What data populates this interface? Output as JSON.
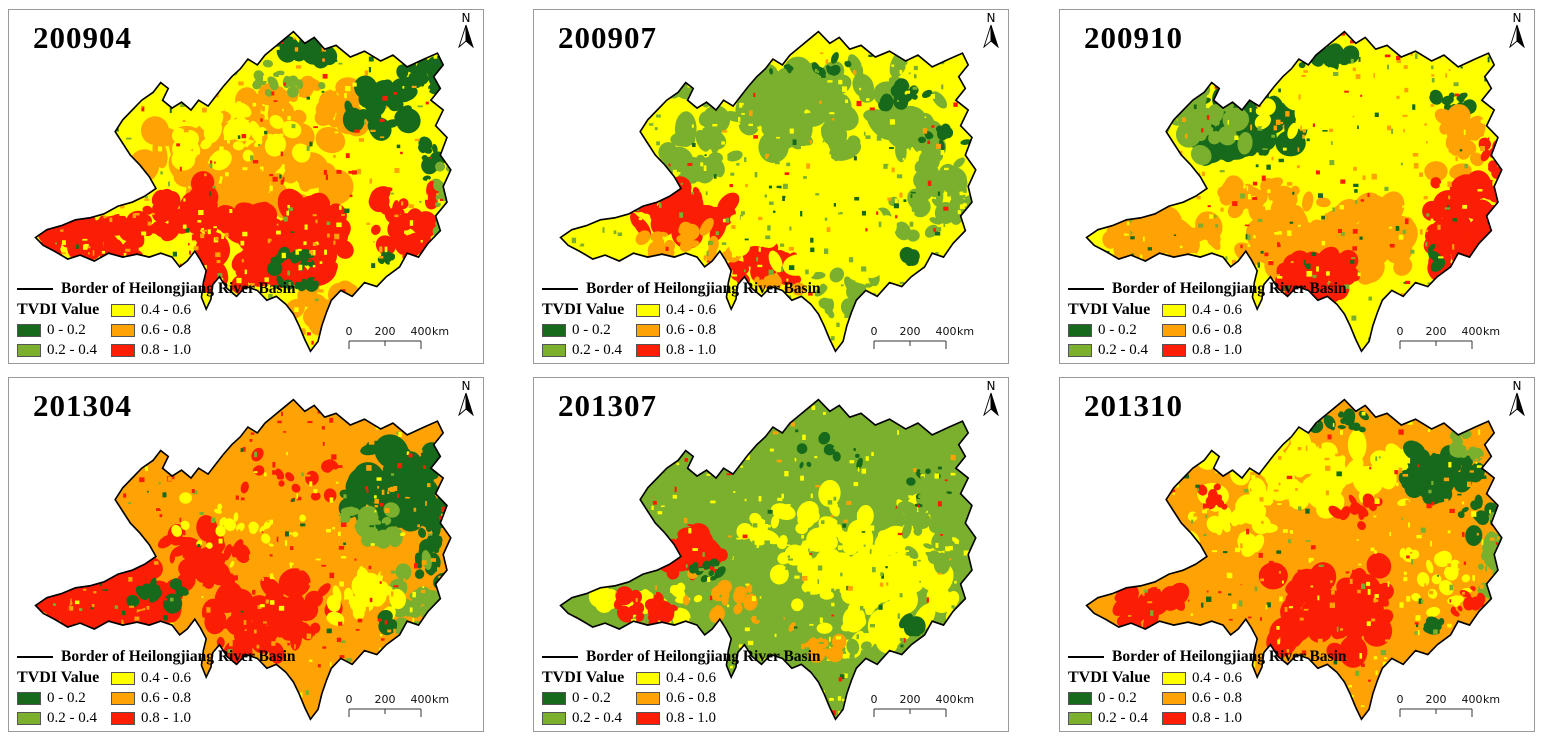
{
  "north_label": "N",
  "palette": {
    "c1": "#17691b",
    "c2": "#7ab02d",
    "c3": "#ffff00",
    "c4": "#ffa204",
    "c5": "#fb1e04",
    "border": "#000000",
    "frame": "#9a9a9a"
  },
  "legend": {
    "border_label": "Border of Heilongjiang River Basin",
    "title": "TVDI Value",
    "classes": [
      {
        "label": "0 - 0.2",
        "color_key": "c1"
      },
      {
        "label": "0.2 - 0.4",
        "color_key": "c2"
      },
      {
        "label": "0.4 - 0.6",
        "color_key": "c3"
      },
      {
        "label": "0.6 - 0.8",
        "color_key": "c4"
      },
      {
        "label": "0.8 - 1.0",
        "color_key": "c5"
      }
    ]
  },
  "scalebar": {
    "t0": "0",
    "t1": "200",
    "t2": "400",
    "unit": "km"
  },
  "panels": [
    {
      "title": "200904",
      "map": {
        "base": "c3",
        "zones": [
          [
            "c4",
            250,
            165,
            135,
            60,
            70,
            16
          ],
          [
            "c4",
            305,
            95,
            100,
            40,
            35,
            12
          ],
          [
            "c4",
            330,
            300,
            45,
            30,
            22,
            11
          ],
          [
            "c5",
            95,
            228,
            70,
            26,
            40,
            13
          ],
          [
            "c5",
            185,
            205,
            55,
            30,
            30,
            12
          ],
          [
            "c5",
            280,
            240,
            95,
            55,
            75,
            15
          ],
          [
            "c5",
            420,
            215,
            40,
            40,
            28,
            10
          ],
          [
            "c1",
            310,
            42,
            34,
            13,
            16,
            9
          ],
          [
            "c1",
            392,
            98,
            38,
            26,
            24,
            10
          ],
          [
            "c1",
            440,
            68,
            28,
            20,
            16,
            9
          ],
          [
            "c1",
            452,
            150,
            18,
            26,
            12,
            7
          ],
          [
            "c1",
            300,
            262,
            45,
            25,
            16,
            6
          ],
          [
            "c1",
            398,
            252,
            9,
            10,
            4,
            7
          ],
          [
            "c2",
            280,
            70,
            85,
            25,
            16,
            5
          ],
          [
            "c2",
            460,
            200,
            15,
            50,
            14,
            6
          ],
          [
            "c3",
            225,
            130,
            85,
            32,
            28,
            10
          ]
        ],
        "weights": [
          0.08,
          0.08,
          0.36,
          0.3,
          0.18
        ]
      }
    },
    {
      "title": "200907",
      "map": {
        "base": "c3",
        "zones": [
          [
            "c2",
            285,
            100,
            155,
            55,
            95,
            15
          ],
          [
            "c2",
            150,
            160,
            65,
            30,
            32,
            10
          ],
          [
            "c2",
            420,
            180,
            55,
            65,
            45,
            9
          ],
          [
            "c2",
            330,
            290,
            60,
            25,
            18,
            8
          ],
          [
            "c1",
            395,
            85,
            32,
            18,
            16,
            7
          ],
          [
            "c1",
            300,
            58,
            65,
            14,
            10,
            5
          ],
          [
            "c1",
            430,
            130,
            30,
            20,
            10,
            5
          ],
          [
            "c5",
            150,
            205,
            60,
            28,
            42,
            12
          ],
          [
            "c5",
            248,
            258,
            45,
            25,
            26,
            10
          ],
          [
            "c4",
            165,
            232,
            60,
            22,
            20,
            8
          ],
          [
            "c4",
            250,
            280,
            40,
            15,
            10,
            7
          ],
          [
            "c3",
            300,
            220,
            95,
            50,
            35,
            12
          ],
          [
            "c1",
            398,
            252,
            9,
            10,
            4,
            7
          ]
        ],
        "weights": [
          0.08,
          0.4,
          0.36,
          0.08,
          0.08
        ]
      }
    },
    {
      "title": "200910",
      "map": {
        "base": "c3",
        "zones": [
          [
            "c1",
            195,
            125,
            62,
            42,
            60,
            13
          ],
          [
            "c1",
            282,
            50,
            40,
            14,
            15,
            8
          ],
          [
            "c1",
            420,
            92,
            26,
            16,
            10,
            6
          ],
          [
            "c2",
            140,
            110,
            62,
            40,
            36,
            11
          ],
          [
            "c2",
            95,
            210,
            50,
            20,
            15,
            8
          ],
          [
            "c4",
            105,
            232,
            70,
            25,
            36,
            12
          ],
          [
            "c4",
            285,
            228,
            115,
            45,
            75,
            15
          ],
          [
            "c4",
            430,
            130,
            36,
            40,
            26,
            10
          ],
          [
            "c4",
            200,
            190,
            60,
            25,
            25,
            10
          ],
          [
            "c5",
            270,
            272,
            58,
            28,
            36,
            11
          ],
          [
            "c5",
            420,
            222,
            48,
            52,
            48,
            12
          ],
          [
            "c5",
            458,
            170,
            14,
            40,
            15,
            7
          ],
          [
            "c3",
            300,
            100,
            100,
            40,
            32,
            12
          ],
          [
            "c1",
            398,
            252,
            9,
            10,
            4,
            7
          ]
        ],
        "weights": [
          0.14,
          0.14,
          0.3,
          0.28,
          0.14
        ]
      }
    },
    {
      "title": "201304",
      "map": {
        "base": "c4",
        "zones": [
          [
            "c5",
            110,
            218,
            85,
            40,
            70,
            14
          ],
          [
            "c5",
            200,
            182,
            55,
            35,
            32,
            11
          ],
          [
            "c5",
            280,
            242,
            75,
            42,
            48,
            12
          ],
          [
            "c5",
            285,
            100,
            85,
            30,
            16,
            6
          ],
          [
            "c1",
            408,
            112,
            62,
            46,
            70,
            13
          ],
          [
            "c1",
            445,
            182,
            20,
            30,
            15,
            8
          ],
          [
            "c2",
            442,
            232,
            35,
            50,
            32,
            9
          ],
          [
            "c2",
            382,
            152,
            42,
            26,
            20,
            8
          ],
          [
            "c3",
            372,
            222,
            52,
            32,
            26,
            9
          ],
          [
            "c3",
            252,
            152,
            92,
            40,
            22,
            5
          ],
          [
            "c1",
            162,
            218,
            42,
            20,
            12,
            8
          ],
          [
            "c1",
            398,
            252,
            9,
            10,
            4,
            7
          ]
        ],
        "weights": [
          0.12,
          0.08,
          0.15,
          0.42,
          0.23
        ]
      }
    },
    {
      "title": "201307",
      "map": {
        "base": "c2",
        "zones": [
          [
            "c3",
            372,
            205,
            92,
            82,
            75,
            14
          ],
          [
            "c3",
            282,
            172,
            62,
            62,
            38,
            11
          ],
          [
            "c3",
            122,
            232,
            62,
            26,
            26,
            9
          ],
          [
            "c2",
            422,
            152,
            48,
            42,
            32,
            9
          ],
          [
            "c2",
            302,
            292,
            62,
            26,
            20,
            8
          ],
          [
            "c5",
            165,
            182,
            46,
            30,
            36,
            10
          ],
          [
            "c5",
            112,
            238,
            36,
            18,
            20,
            8
          ],
          [
            "c4",
            202,
            222,
            52,
            30,
            16,
            7
          ],
          [
            "c4",
            285,
            272,
            42,
            20,
            12,
            7
          ],
          [
            "c1",
            185,
            197,
            26,
            20,
            9,
            6
          ],
          [
            "c1",
            332,
            72,
            62,
            20,
            8,
            5
          ],
          [
            "c1",
            420,
            112,
            42,
            26,
            10,
            4
          ],
          [
            "c1",
            398,
            250,
            10,
            11,
            4,
            8
          ]
        ],
        "weights": [
          0.07,
          0.45,
          0.36,
          0.07,
          0.05
        ]
      }
    },
    {
      "title": "201310",
      "map": {
        "base": "c4",
        "zones": [
          [
            "c3",
            262,
            92,
            125,
            45,
            65,
            13
          ],
          [
            "c3",
            182,
            152,
            62,
            30,
            22,
            8
          ],
          [
            "c3",
            402,
            202,
            52,
            42,
            20,
            7
          ],
          [
            "c1",
            302,
            46,
            36,
            12,
            12,
            7
          ],
          [
            "c1",
            400,
            97,
            42,
            28,
            38,
            11
          ],
          [
            "c1",
            442,
            142,
            20,
            20,
            12,
            7
          ],
          [
            "c2",
            457,
            182,
            16,
            60,
            22,
            7
          ],
          [
            "c2",
            430,
            70,
            30,
            14,
            10,
            6
          ],
          [
            "c5",
            287,
            237,
            68,
            52,
            62,
            13
          ],
          [
            "c5",
            312,
            132,
            32,
            20,
            12,
            7
          ],
          [
            "c5",
            82,
            237,
            52,
            20,
            26,
            10
          ],
          [
            "c5",
            162,
            122,
            20,
            15,
            8,
            6
          ],
          [
            "c5",
            432,
            232,
            30,
            25,
            12,
            6
          ],
          [
            "c1",
            398,
            250,
            10,
            11,
            4,
            8
          ]
        ],
        "weights": [
          0.08,
          0.1,
          0.26,
          0.4,
          0.16
        ]
      }
    }
  ]
}
